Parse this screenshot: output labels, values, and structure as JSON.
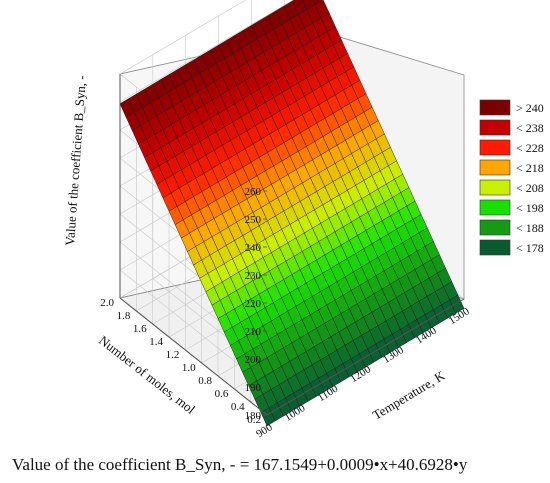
{
  "chart_data": {
    "type": "surface3d",
    "title": "",
    "equation": "Value of the coefficient B_Syn, - = 167.1549+0.0009•x+40.6928•y",
    "coefficients": {
      "intercept": 167.1549,
      "x": 0.0009,
      "y": 40.6928
    },
    "xlabel": "Temperature, K",
    "ylabel": "Number of moles, mol",
    "zlabel": "Value of the coefficient B_Syn, -",
    "xlim": [
      900,
      1500
    ],
    "ylim": [
      0.2,
      2.0
    ],
    "zlim": [
      180,
      260
    ],
    "x_ticks": [
      "900",
      "1000",
      "1100",
      "1200",
      "1300",
      "1400",
      "1500"
    ],
    "y_ticks": [
      "0.2",
      "0.4",
      "0.6",
      "0.8",
      "1.0",
      "1.2",
      "1.4",
      "1.6",
      "1.8",
      "2.0"
    ],
    "z_ticks": [
      "180",
      "190",
      "200",
      "210",
      "220",
      "230",
      "240",
      "250",
      "260"
    ],
    "grid": true,
    "legend_position": "right",
    "legend": [
      {
        "label": "> 240",
        "color": "#7b0000"
      },
      {
        "label": "< 238",
        "color": "#c30000"
      },
      {
        "label": "< 228",
        "color": "#ff1a00"
      },
      {
        "label": "< 218",
        "color": "#ffa500"
      },
      {
        "label": "< 208",
        "color": "#c8f000"
      },
      {
        "label": "< 198",
        "color": "#17e000"
      },
      {
        "label": "< 188",
        "color": "#149a14"
      },
      {
        "label": "< 178",
        "color": "#0a5a30"
      }
    ]
  }
}
